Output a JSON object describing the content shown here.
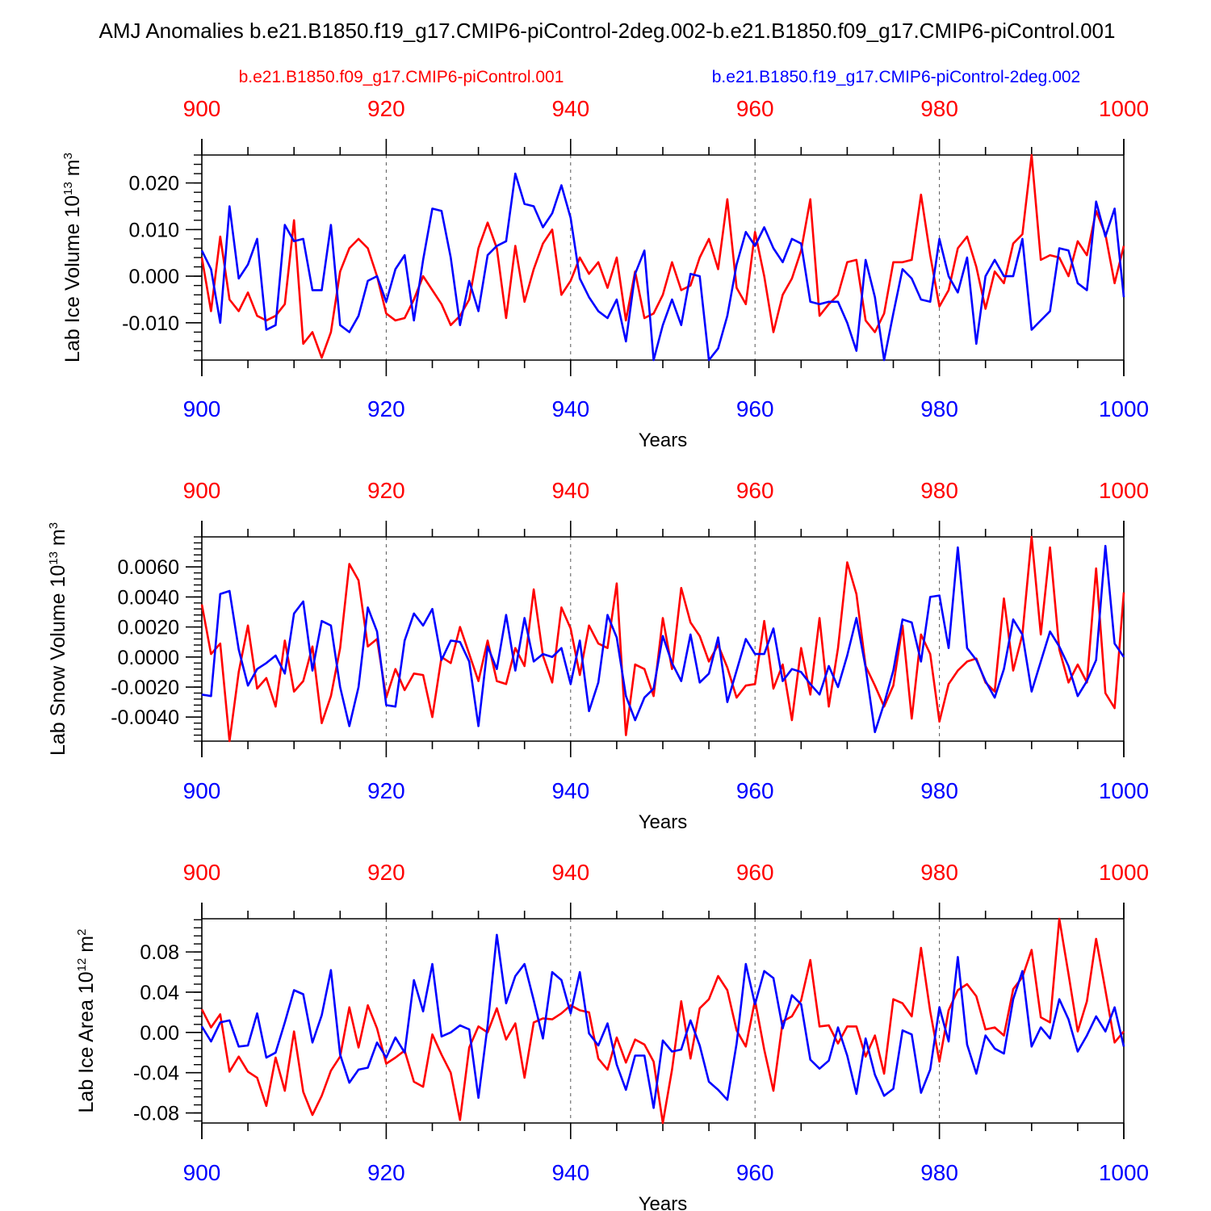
{
  "title": "AMJ Anomalies b.e21.B1850.f19_g17.CMIP6-piControl-2deg.002-b.e21.B1850.f09_g17.CMIP6-piControl.001",
  "legend": {
    "red_label": "b.e21.B1850.f09_g17.CMIP6-piControl.001",
    "blue_label": "b.e21.B1850.f19_g17.CMIP6-piControl-2deg.002"
  },
  "colors": {
    "red": "#ff0000",
    "blue": "#0000ff",
    "axis": "#000000"
  },
  "x_tick_labels": [
    "900",
    "920",
    "940",
    "960",
    "980",
    "1000"
  ],
  "chart_data": [
    {
      "type": "line",
      "title": "",
      "xlabel": "Years",
      "ylabel_main": "Lab Ice Volume 10",
      "ylabel_exp": "13",
      "ylabel_unit": " m",
      "ylabel_unit_exp": "3",
      "xlim": [
        900,
        1000
      ],
      "ylim": [
        -0.018,
        0.026
      ],
      "yticks": [
        -0.01,
        0.0,
        0.01,
        0.02
      ],
      "ytick_labels": [
        "-0.010",
        "0.000",
        "0.010",
        "0.020"
      ],
      "minor_step": 0.002,
      "x": [
        900,
        901,
        902,
        903,
        904,
        905,
        906,
        907,
        908,
        909,
        910,
        911,
        912,
        913,
        914,
        915,
        916,
        917,
        918,
        919,
        920,
        921,
        922,
        923,
        924,
        925,
        926,
        927,
        928,
        929,
        930,
        931,
        932,
        933,
        934,
        935,
        936,
        937,
        938,
        939,
        940,
        941,
        942,
        943,
        944,
        945,
        946,
        947,
        948,
        949,
        950,
        951,
        952,
        953,
        954,
        955,
        956,
        957,
        958,
        959,
        960,
        961,
        962,
        963,
        964,
        965,
        966,
        967,
        968,
        969,
        970,
        971,
        972,
        973,
        974,
        975,
        976,
        977,
        978,
        979,
        980,
        981,
        982,
        983,
        984,
        985,
        986,
        987,
        988,
        989,
        990,
        991,
        992,
        993,
        994,
        995,
        996,
        997,
        998,
        999,
        1000
      ],
      "series": [
        {
          "name": "b.e21.B1850.f09_g17.CMIP6-piControl.001",
          "color": "red",
          "values": [
            0.004,
            -0.0075,
            0.0085,
            -0.005,
            -0.0075,
            -0.0035,
            -0.0085,
            -0.0095,
            -0.0085,
            -0.006,
            0.012,
            -0.0145,
            -0.012,
            -0.0175,
            -0.012,
            0.001,
            0.006,
            0.008,
            0.006,
            0.0,
            -0.008,
            -0.0095,
            -0.009,
            -0.005,
            0.0,
            -0.003,
            -0.006,
            -0.0105,
            -0.0085,
            -0.005,
            0.006,
            0.0115,
            0.006,
            -0.009,
            0.0065,
            -0.0055,
            0.0015,
            0.007,
            0.01,
            -0.004,
            -0.001,
            0.004,
            0.0005,
            0.003,
            -0.0025,
            0.004,
            -0.0095,
            0.001,
            -0.009,
            -0.008,
            -0.004,
            0.003,
            -0.003,
            -0.002,
            0.004,
            0.008,
            0.0015,
            0.0165,
            -0.0025,
            -0.006,
            0.0095,
            0.0,
            -0.012,
            -0.004,
            -0.0005,
            0.0055,
            0.0165,
            -0.0085,
            -0.006,
            -0.004,
            0.003,
            0.0035,
            -0.0095,
            -0.012,
            -0.008,
            0.003,
            0.003,
            0.0035,
            0.0175,
            0.0045,
            -0.0065,
            -0.003,
            0.006,
            0.0085,
            0.002,
            -0.007,
            0.001,
            -0.0015,
            0.007,
            0.009,
            0.026,
            0.0035,
            0.0045,
            0.004,
            0.0,
            0.0075,
            0.0045,
            0.014,
            0.009,
            -0.0015,
            0.0065
          ]
        },
        {
          "name": "b.e21.B1850.f19_g17.CMIP6-piControl-2deg.002",
          "color": "blue",
          "values": [
            0.0055,
            0.0015,
            -0.01,
            0.015,
            -0.0005,
            0.0025,
            0.008,
            -0.0115,
            -0.0105,
            0.011,
            0.0075,
            0.008,
            -0.003,
            -0.003,
            0.011,
            -0.0105,
            -0.012,
            -0.0085,
            -0.001,
            0.0,
            -0.0055,
            0.0015,
            0.0045,
            -0.0095,
            0.0035,
            0.0145,
            0.014,
            0.004,
            -0.0105,
            -0.001,
            -0.0075,
            0.0045,
            0.0065,
            0.0075,
            0.022,
            0.0155,
            0.015,
            0.0105,
            0.0135,
            0.0195,
            0.0125,
            -0.0005,
            -0.0045,
            -0.0075,
            -0.009,
            -0.005,
            -0.014,
            0.0005,
            0.0055,
            -0.018,
            -0.0105,
            -0.005,
            -0.0105,
            0.0005,
            0.0,
            -0.018,
            -0.0155,
            -0.0085,
            0.0025,
            0.0095,
            0.0065,
            0.0105,
            0.006,
            0.003,
            0.008,
            0.007,
            -0.0055,
            -0.006,
            -0.0055,
            -0.0055,
            -0.01,
            -0.016,
            0.0035,
            -0.0045,
            -0.018,
            -0.008,
            0.0015,
            -0.0005,
            -0.005,
            -0.0055,
            0.008,
            0.0,
            -0.0035,
            0.004,
            -0.0145,
            0.0,
            0.0035,
            0.0,
            0.0,
            0.008,
            -0.0115,
            -0.0095,
            -0.0075,
            0.006,
            0.0055,
            -0.0015,
            -0.003,
            0.016,
            0.0085,
            0.0145,
            -0.0045
          ]
        }
      ]
    },
    {
      "type": "line",
      "title": "",
      "xlabel": "Years",
      "ylabel_main": "Lab Snow Volume 10",
      "ylabel_exp": "13",
      "ylabel_unit": " m",
      "ylabel_unit_exp": "3",
      "xlim": [
        900,
        1000
      ],
      "ylim": [
        -0.0056,
        0.008
      ],
      "yticks": [
        -0.004,
        -0.002,
        0.0,
        0.002,
        0.004,
        0.006
      ],
      "ytick_labels": [
        "-0.0040",
        "-0.0020",
        "0.0000",
        "0.0020",
        "0.0040",
        "0.0060"
      ],
      "minor_step": 0.0004,
      "x": [
        900,
        901,
        902,
        903,
        904,
        905,
        906,
        907,
        908,
        909,
        910,
        911,
        912,
        913,
        914,
        915,
        916,
        917,
        918,
        919,
        920,
        921,
        922,
        923,
        924,
        925,
        926,
        927,
        928,
        929,
        930,
        931,
        932,
        933,
        934,
        935,
        936,
        937,
        938,
        939,
        940,
        941,
        942,
        943,
        944,
        945,
        946,
        947,
        948,
        949,
        950,
        951,
        952,
        953,
        954,
        955,
        956,
        957,
        958,
        959,
        960,
        961,
        962,
        963,
        964,
        965,
        966,
        967,
        968,
        969,
        970,
        971,
        972,
        973,
        974,
        975,
        976,
        977,
        978,
        979,
        980,
        981,
        982,
        983,
        984,
        985,
        986,
        987,
        988,
        989,
        990,
        991,
        992,
        993,
        994,
        995,
        996,
        997,
        998,
        999,
        1000
      ],
      "series": [
        {
          "name": "b.e21.B1850.f09_g17.CMIP6-piControl.001",
          "color": "red",
          "values": [
            0.0035,
            0.0002,
            0.0009,
            -0.0056,
            -0.001,
            0.0021,
            -0.0021,
            -0.0014,
            -0.0033,
            0.0011,
            -0.0023,
            -0.0016,
            0.0007,
            -0.0044,
            -0.0026,
            0.0006,
            0.0062,
            0.0051,
            0.0007,
            0.0012,
            -0.0027,
            -0.0008,
            -0.0022,
            -0.0011,
            -0.0012,
            -0.004,
            0.0,
            -0.0004,
            0.002,
            0.0002,
            -0.0016,
            0.0011,
            -0.0016,
            -0.0018,
            0.0006,
            -0.0006,
            0.0045,
            0.0001,
            -0.0017,
            0.0033,
            0.0019,
            -0.0012,
            0.0021,
            0.0009,
            0.0006,
            0.0049,
            -0.0052,
            -0.0005,
            -0.0008,
            -0.0026,
            0.0026,
            -0.0008,
            0.0046,
            0.0023,
            0.0014,
            -0.0003,
            0.0008,
            -0.0007,
            -0.0027,
            -0.0019,
            -0.0018,
            0.0024,
            -0.0021,
            -0.0005,
            -0.0042,
            0.0006,
            -0.0025,
            0.0026,
            -0.0033,
            0.0006,
            0.0063,
            0.0042,
            -0.0006,
            -0.0019,
            -0.0033,
            -0.0019,
            0.0021,
            -0.0041,
            0.0015,
            0.0002,
            -0.0043,
            -0.0018,
            -0.0009,
            -0.0003,
            -0.0001,
            -0.0017,
            -0.0023,
            0.0039,
            -0.0009,
            0.0015,
            0.008,
            0.0015,
            0.0073,
            0.0005,
            -0.0017,
            -0.0005,
            -0.0017,
            0.0059,
            -0.0024,
            -0.0034,
            0.0043
          ]
        },
        {
          "name": "b.e21.B1850.f19_g17.CMIP6-piControl-2deg.002",
          "color": "blue",
          "values": [
            -0.0025,
            -0.0026,
            0.0042,
            0.0044,
            0.0005,
            -0.0019,
            -0.0008,
            -0.0004,
            0.0001,
            -0.0011,
            0.0029,
            0.0037,
            -0.0009,
            0.0024,
            0.0021,
            -0.002,
            -0.0046,
            -0.002,
            0.0033,
            0.0017,
            -0.0032,
            -0.0033,
            0.0011,
            0.0029,
            0.0021,
            0.0032,
            -0.0002,
            0.0011,
            0.001,
            -0.0003,
            -0.0046,
            0.0007,
            -0.0008,
            0.0028,
            -0.0009,
            0.0026,
            -0.0003,
            0.0002,
            0.0,
            0.0006,
            -0.0018,
            0.0011,
            -0.0036,
            -0.0017,
            0.0028,
            0.0013,
            -0.0026,
            -0.0042,
            -0.0027,
            -0.0021,
            0.0014,
            -0.0004,
            -0.0016,
            0.0015,
            -0.0017,
            -0.0011,
            0.0013,
            -0.003,
            -0.0009,
            0.0012,
            0.0002,
            0.0002,
            0.0019,
            -0.0016,
            -0.0008,
            -0.001,
            -0.0018,
            -0.0025,
            -0.0006,
            -0.002,
            0.0001,
            0.0026,
            -0.0007,
            -0.005,
            -0.0031,
            -0.0009,
            0.0025,
            0.0023,
            -0.0003,
            0.004,
            0.0041,
            0.0006,
            0.0073,
            0.0006,
            -0.0002,
            -0.0016,
            -0.0027,
            -0.0008,
            0.0025,
            0.0015,
            -0.0023,
            -0.0003,
            0.0017,
            0.0007,
            -0.0006,
            -0.0026,
            -0.0016,
            -0.0002,
            0.0074,
            0.0009,
            0.0
          ]
        }
      ]
    },
    {
      "type": "line",
      "title": "",
      "xlabel": "Years",
      "ylabel_main": "Lab Ice Area 10",
      "ylabel_exp": "12",
      "ylabel_unit": " m",
      "ylabel_unit_exp": "2",
      "xlim": [
        900,
        1000
      ],
      "ylim": [
        -0.09,
        0.113
      ],
      "yticks": [
        -0.08,
        -0.04,
        0.0,
        0.04,
        0.08
      ],
      "ytick_labels": [
        "-0.08",
        "-0.04",
        "0.00",
        "0.04",
        "0.08"
      ],
      "minor_step": 0.008,
      "x": [
        900,
        901,
        902,
        903,
        904,
        905,
        906,
        907,
        908,
        909,
        910,
        911,
        912,
        913,
        914,
        915,
        916,
        917,
        918,
        919,
        920,
        921,
        922,
        923,
        924,
        925,
        926,
        927,
        928,
        929,
        930,
        931,
        932,
        933,
        934,
        935,
        936,
        937,
        938,
        939,
        940,
        941,
        942,
        943,
        944,
        945,
        946,
        947,
        948,
        949,
        950,
        951,
        952,
        953,
        954,
        955,
        956,
        957,
        958,
        959,
        960,
        961,
        962,
        963,
        964,
        965,
        966,
        967,
        968,
        969,
        970,
        971,
        972,
        973,
        974,
        975,
        976,
        977,
        978,
        979,
        980,
        981,
        982,
        983,
        984,
        985,
        986,
        987,
        988,
        989,
        990,
        991,
        992,
        993,
        994,
        995,
        996,
        997,
        998,
        999,
        1000
      ],
      "series": [
        {
          "name": "b.e21.B1850.f09_g17.CMIP6-piControl.001",
          "color": "red",
          "values": [
            0.023,
            0.005,
            0.018,
            -0.039,
            -0.024,
            -0.039,
            -0.045,
            -0.073,
            -0.025,
            -0.058,
            0.001,
            -0.059,
            -0.082,
            -0.063,
            -0.038,
            -0.024,
            0.025,
            -0.015,
            0.027,
            0.004,
            -0.031,
            -0.025,
            -0.018,
            -0.049,
            -0.054,
            -0.002,
            -0.022,
            -0.04,
            -0.087,
            -0.015,
            0.006,
            0.0,
            0.024,
            -0.007,
            0.009,
            -0.045,
            0.01,
            0.014,
            0.013,
            0.019,
            0.027,
            0.022,
            0.02,
            -0.026,
            -0.037,
            -0.005,
            -0.03,
            -0.007,
            -0.012,
            -0.029,
            -0.09,
            -0.037,
            0.031,
            -0.026,
            0.024,
            0.033,
            0.056,
            0.042,
            0.002,
            -0.014,
            0.032,
            -0.017,
            -0.058,
            0.011,
            0.016,
            0.032,
            0.072,
            0.006,
            0.007,
            -0.011,
            0.006,
            0.006,
            -0.024,
            -0.003,
            -0.041,
            0.033,
            0.029,
            0.016,
            0.084,
            0.021,
            -0.029,
            0.022,
            0.042,
            0.048,
            0.036,
            0.003,
            0.005,
            -0.003,
            0.043,
            0.055,
            0.082,
            0.015,
            0.01,
            0.113,
            0.058,
            0.001,
            0.031,
            0.093,
            0.042,
            -0.01,
            0.001
          ]
        },
        {
          "name": "b.e21.B1850.f19_g17.CMIP6-piControl-2deg.002",
          "color": "blue",
          "values": [
            0.006,
            -0.009,
            0.01,
            0.012,
            -0.014,
            -0.013,
            0.019,
            -0.025,
            -0.02,
            0.01,
            0.042,
            0.038,
            -0.01,
            0.017,
            0.062,
            -0.022,
            -0.05,
            -0.037,
            -0.035,
            -0.01,
            -0.025,
            -0.005,
            -0.02,
            0.052,
            0.021,
            0.068,
            -0.004,
            0.0,
            0.007,
            0.003,
            -0.065,
            0.007,
            0.097,
            0.029,
            0.056,
            0.068,
            0.032,
            -0.006,
            0.06,
            0.052,
            0.019,
            0.06,
            -0.001,
            -0.013,
            0.009,
            -0.032,
            -0.057,
            -0.023,
            -0.023,
            -0.075,
            -0.008,
            -0.019,
            -0.017,
            0.012,
            -0.013,
            -0.049,
            -0.057,
            -0.067,
            -0.011,
            0.068,
            0.028,
            0.061,
            0.054,
            0.004,
            0.037,
            0.028,
            -0.027,
            -0.036,
            -0.028,
            0.005,
            -0.023,
            -0.061,
            -0.006,
            -0.042,
            -0.063,
            -0.056,
            0.002,
            -0.002,
            -0.06,
            -0.037,
            0.025,
            -0.009,
            0.075,
            -0.012,
            -0.041,
            -0.003,
            -0.016,
            -0.021,
            0.033,
            0.061,
            -0.014,
            0.005,
            -0.006,
            0.033,
            0.013,
            -0.019,
            -0.003,
            0.016,
            0.001,
            0.025,
            -0.014
          ]
        }
      ]
    }
  ]
}
